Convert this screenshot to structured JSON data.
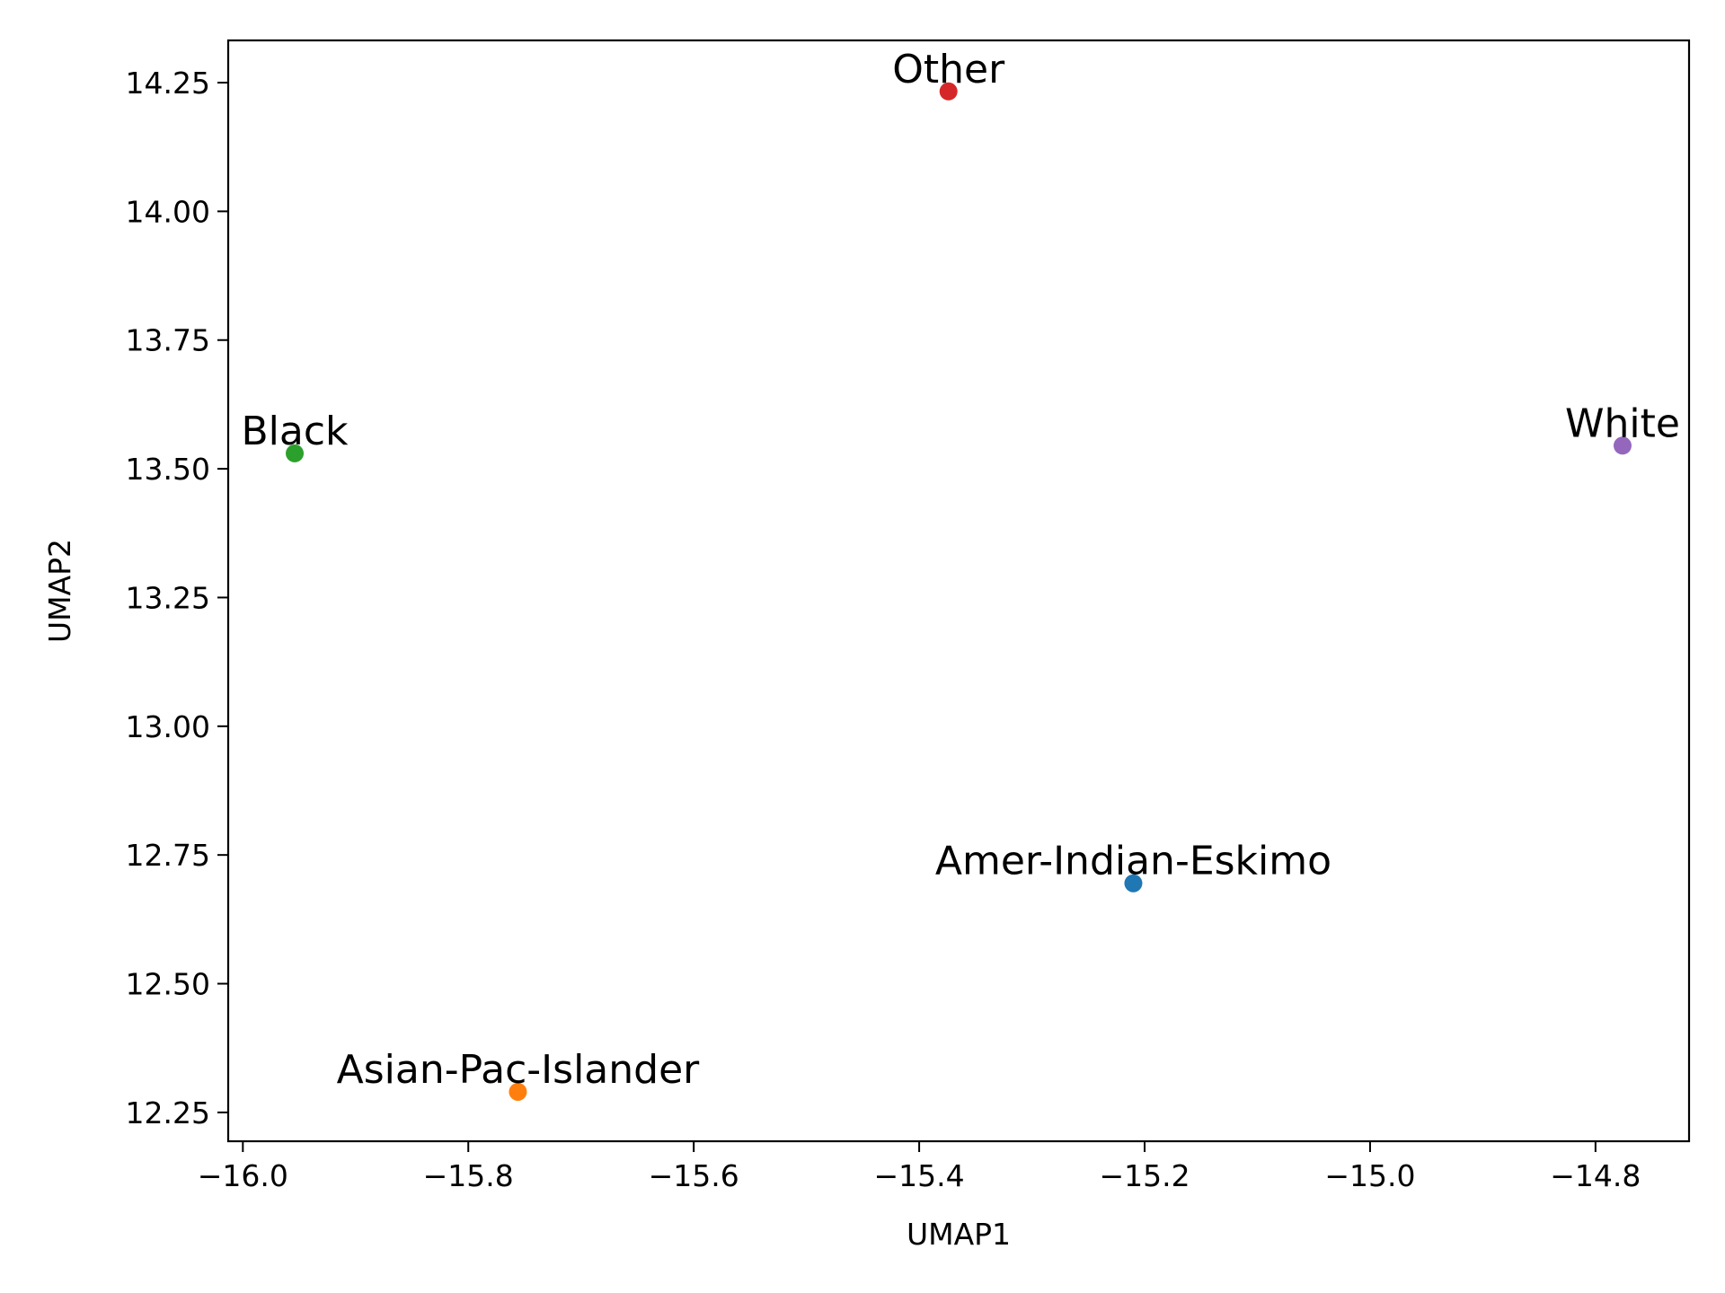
{
  "chart_data": {
    "type": "scatter",
    "title": "",
    "xlabel": "UMAP1",
    "ylabel": "UMAP2",
    "xlim": [
      -16.013,
      -14.717
    ],
    "ylim": [
      12.194,
      14.332
    ],
    "x_ticks": [
      -16.0,
      -15.8,
      -15.6,
      -15.4,
      -15.2,
      -15.0,
      -14.8
    ],
    "x_tick_labels": [
      "−16.0",
      "−15.8",
      "−15.6",
      "−15.4",
      "−15.2",
      "−15.0",
      "−14.8"
    ],
    "y_ticks": [
      12.25,
      12.5,
      12.75,
      13.0,
      13.25,
      13.5,
      13.75,
      14.0,
      14.25
    ],
    "y_tick_labels": [
      "12.25",
      "12.50",
      "12.75",
      "13.00",
      "13.25",
      "13.50",
      "13.75",
      "14.00",
      "14.25"
    ],
    "grid": false,
    "points": [
      {
        "label": "Amer-Indian-Eskimo",
        "x": -15.21,
        "y": 12.695,
        "color": "#1f77b4"
      },
      {
        "label": "Asian-Pac-Islander",
        "x": -15.756,
        "y": 12.29,
        "color": "#ff7f0e"
      },
      {
        "label": "Black",
        "x": -15.954,
        "y": 13.53,
        "color": "#2ca02c"
      },
      {
        "label": "Other",
        "x": -15.374,
        "y": 14.233,
        "color": "#d62728"
      },
      {
        "label": "White",
        "x": -14.776,
        "y": 13.545,
        "color": "#9467bd"
      }
    ]
  }
}
